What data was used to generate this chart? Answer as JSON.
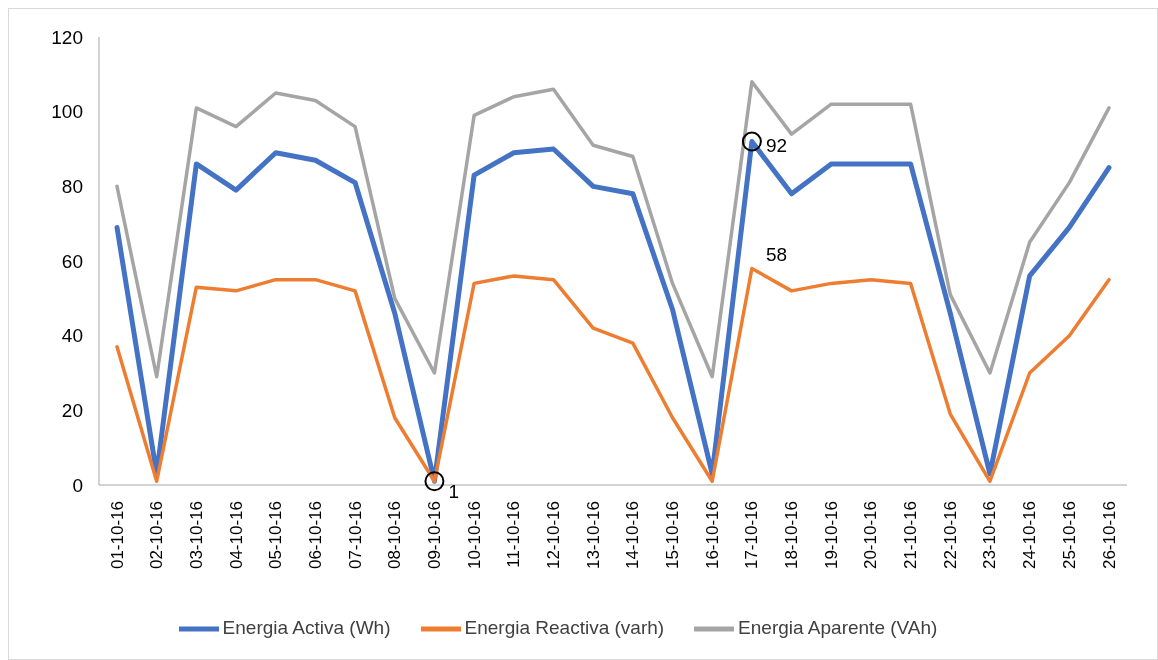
{
  "chart_data": {
    "type": "line",
    "categories": [
      "01-10-16",
      "02-10-16",
      "03-10-16",
      "04-10-16",
      "05-10-16",
      "06-10-16",
      "07-10-16",
      "08-10-16",
      "09-10-16",
      "10-10-16",
      "11-10-16",
      "12-10-16",
      "13-10-16",
      "14-10-16",
      "15-10-16",
      "16-10-16",
      "17-10-16",
      "18-10-16",
      "19-10-16",
      "20-10-16",
      "21-10-16",
      "22-10-16",
      "23-10-16",
      "24-10-16",
      "25-10-16",
      "26-10-16"
    ],
    "series": [
      {
        "name": "Energia Activa (Wh)",
        "color": "#4472c4",
        "values": [
          69,
          3,
          86,
          79,
          89,
          87,
          81,
          46,
          1,
          83,
          89,
          90,
          80,
          78,
          47,
          3,
          92,
          78,
          86,
          86,
          86,
          46,
          3,
          56,
          69,
          85
        ]
      },
      {
        "name": "Energia Reactiva (varh)",
        "color": "#ed7d31",
        "values": [
          37,
          1,
          53,
          52,
          55,
          55,
          52,
          18,
          1,
          54,
          56,
          55,
          42,
          38,
          18,
          1,
          58,
          52,
          54,
          55,
          54,
          19,
          1,
          30,
          40,
          55
        ]
      },
      {
        "name": "Energia Aparente (VAh)",
        "color": "#a5a5a5",
        "values": [
          80,
          29,
          101,
          96,
          105,
          103,
          96,
          50,
          30,
          99,
          104,
          106,
          91,
          88,
          54,
          29,
          108,
          94,
          102,
          102,
          102,
          51,
          30,
          65,
          81,
          101
        ]
      }
    ],
    "ylim": [
      0,
      120
    ],
    "yticks": [
      0,
      20,
      40,
      60,
      80,
      100,
      120
    ],
    "grid": false,
    "legend": "bottom",
    "marker": "none",
    "line_style": "solid",
    "annotations": [
      {
        "text": "1",
        "x": "09-10-16",
        "y": 1
      },
      {
        "text": "92",
        "x": "17-10-16",
        "y": 92
      },
      {
        "text": "58",
        "x": "17-10-16",
        "y": 58
      }
    ]
  }
}
